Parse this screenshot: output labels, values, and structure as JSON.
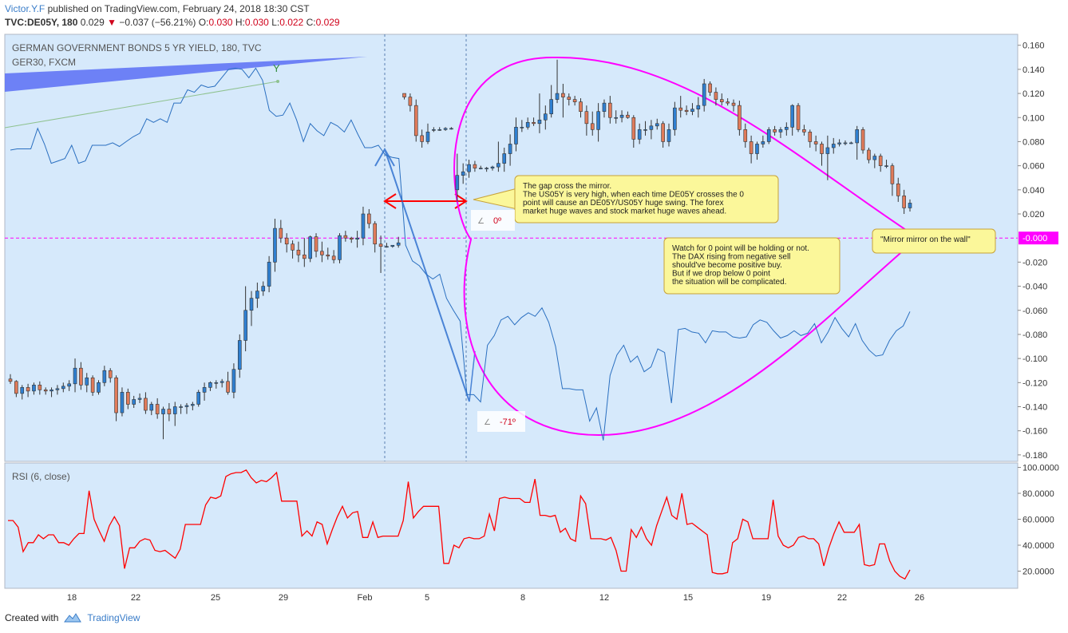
{
  "header": {
    "author": "Victor.Y.F",
    "published": "published on TradingView.com, February 24, 2018 18:30 CST",
    "symbol": "TVC:DE05Y, 180",
    "last": "0.029",
    "change": "−0.037 (−56.21%)",
    "o_label": "O:",
    "o": "0.030",
    "h_label": "H:",
    "h": "0.030",
    "l_label": "L:",
    "l": "0.022",
    "c_label": "C:",
    "c": "0.029"
  },
  "footer": {
    "created_with": "Created with",
    "brand": "TradingView"
  },
  "colors": {
    "pane_bg": "#d6e9fb",
    "up": "#2f7fd0",
    "down": "#e07b5a",
    "ger30": "#2a6fc0",
    "mirror": "#ff00ff",
    "rsi": "#ff0000",
    "arrow_blue": "#4a84d6",
    "arrow_red": "#ff0000",
    "note_bg": "#fbf79a",
    "note_border": "#c7a23a"
  },
  "chart_data": {
    "type": "candlestick",
    "title": "GERMAN GOVERNMENT BONDS 5 YR YIELD, 180, TVC",
    "overlay_label": "GER30, FXCM",
    "y_ticks": [
      "0.160",
      "0.140",
      "0.120",
      "0.100",
      "0.080",
      "0.060",
      "0.040",
      "0.020",
      "-0.020",
      "-0.040",
      "-0.060",
      "-0.080",
      "-0.100",
      "-0.120",
      "-0.140",
      "-0.160",
      "-0.180"
    ],
    "ylim": [
      -0.18,
      0.16
    ],
    "x_ticks": [
      "18",
      "22",
      "25",
      "29",
      "Feb",
      "5",
      "8",
      "12",
      "15",
      "19",
      "22",
      "26"
    ],
    "zero_line_label": "-0.000",
    "candles": [
      [
        -0.117,
        -0.113,
        -0.121,
        -0.119
      ],
      [
        -0.119,
        -0.118,
        -0.132,
        -0.129
      ],
      [
        -0.129,
        -0.122,
        -0.134,
        -0.124
      ],
      [
        -0.124,
        -0.121,
        -0.132,
        -0.127
      ],
      [
        -0.127,
        -0.12,
        -0.13,
        -0.122
      ],
      [
        -0.122,
        -0.119,
        -0.13,
        -0.126
      ],
      [
        -0.126,
        -0.124,
        -0.13,
        -0.127
      ],
      [
        -0.127,
        -0.124,
        -0.132,
        -0.126
      ],
      [
        -0.126,
        -0.122,
        -0.13,
        -0.125
      ],
      [
        -0.125,
        -0.12,
        -0.128,
        -0.123
      ],
      [
        -0.123,
        -0.118,
        -0.127,
        -0.121
      ],
      [
        -0.121,
        -0.1,
        -0.128,
        -0.108
      ],
      [
        -0.108,
        -0.103,
        -0.126,
        -0.122
      ],
      [
        -0.122,
        -0.112,
        -0.128,
        -0.116
      ],
      [
        -0.116,
        -0.114,
        -0.131,
        -0.128
      ],
      [
        -0.128,
        -0.118,
        -0.13,
        -0.12
      ],
      [
        -0.12,
        -0.106,
        -0.123,
        -0.11
      ],
      [
        -0.11,
        -0.108,
        -0.12,
        -0.116
      ],
      [
        -0.116,
        -0.114,
        -0.152,
        -0.145
      ],
      [
        -0.145,
        -0.124,
        -0.148,
        -0.128
      ],
      [
        -0.128,
        -0.125,
        -0.142,
        -0.138
      ],
      [
        -0.138,
        -0.131,
        -0.141,
        -0.134
      ],
      [
        -0.134,
        -0.129,
        -0.137,
        -0.133
      ],
      [
        -0.133,
        -0.128,
        -0.146,
        -0.143
      ],
      [
        -0.143,
        -0.136,
        -0.147,
        -0.138
      ],
      [
        -0.138,
        -0.133,
        -0.15,
        -0.146
      ],
      [
        -0.146,
        -0.14,
        -0.167,
        -0.142
      ],
      [
        -0.142,
        -0.137,
        -0.152,
        -0.146
      ],
      [
        -0.146,
        -0.136,
        -0.156,
        -0.14
      ],
      [
        -0.14,
        -0.138,
        -0.146,
        -0.14
      ],
      [
        -0.14,
        -0.137,
        -0.146,
        -0.139
      ],
      [
        -0.139,
        -0.136,
        -0.143,
        -0.138
      ],
      [
        -0.138,
        -0.126,
        -0.14,
        -0.128
      ],
      [
        -0.128,
        -0.12,
        -0.135,
        -0.124
      ],
      [
        -0.124,
        -0.119,
        -0.127,
        -0.12
      ],
      [
        -0.12,
        -0.118,
        -0.125,
        -0.12
      ],
      [
        -0.12,
        -0.117,
        -0.124,
        -0.119
      ],
      [
        -0.119,
        -0.111,
        -0.13,
        -0.128
      ],
      [
        -0.128,
        -0.104,
        -0.133,
        -0.109
      ],
      [
        -0.109,
        -0.08,
        -0.116,
        -0.085
      ],
      [
        -0.085,
        -0.04,
        -0.094,
        -0.06
      ],
      [
        -0.06,
        -0.044,
        -0.073,
        -0.05
      ],
      [
        -0.05,
        -0.037,
        -0.058,
        -0.044
      ],
      [
        -0.044,
        -0.036,
        -0.048,
        -0.04
      ],
      [
        -0.04,
        -0.015,
        -0.045,
        -0.02
      ],
      [
        -0.02,
        0.016,
        -0.028,
        0.008
      ],
      [
        0.008,
        0.015,
        -0.004,
        0.0
      ],
      [
        0.0,
        0.004,
        -0.012,
        -0.005
      ],
      [
        -0.005,
        -0.002,
        -0.017,
        -0.01
      ],
      [
        -0.01,
        -0.003,
        -0.02,
        -0.014
      ],
      [
        -0.014,
        0.0,
        -0.024,
        -0.017
      ],
      [
        -0.017,
        0.002,
        -0.02,
        0.001
      ],
      [
        0.001,
        0.004,
        -0.016,
        -0.011
      ],
      [
        -0.011,
        -0.003,
        -0.02,
        -0.014
      ],
      [
        -0.014,
        -0.008,
        -0.018,
        -0.015
      ],
      [
        -0.015,
        -0.01,
        -0.021,
        -0.018
      ],
      [
        -0.018,
        0.004,
        -0.021,
        0.002
      ],
      [
        0.002,
        0.006,
        -0.003,
        0.0
      ],
      [
        0.0,
        0.001,
        -0.004,
        -0.001
      ],
      [
        -0.001,
        0.006,
        -0.008,
        0.0
      ],
      [
        0.0,
        0.026,
        -0.006,
        0.02
      ],
      [
        0.02,
        0.024,
        0.008,
        0.012
      ],
      [
        0.012,
        0.014,
        -0.012,
        -0.005
      ],
      [
        -0.005,
        0.002,
        -0.029,
        -0.007
      ],
      [
        -0.007,
        -0.004,
        -0.008,
        -0.007
      ],
      [
        -0.007,
        -0.006,
        -0.008,
        -0.006
      ],
      [
        -0.006,
        0.001,
        -0.008,
        -0.004
      ],
      [
        0.12,
        0.12,
        0.115,
        0.117
      ],
      [
        0.117,
        0.12,
        0.105,
        0.11
      ],
      [
        0.11,
        0.115,
        0.08,
        0.085
      ],
      [
        0.085,
        0.09,
        0.075,
        0.08
      ],
      [
        0.08,
        0.095,
        0.078,
        0.088
      ],
      [
        0.09,
        0.092,
        0.088,
        0.09
      ],
      [
        0.09,
        0.092,
        0.089,
        0.09
      ],
      [
        0.09,
        0.092,
        0.089,
        0.091
      ],
      [
        0.091,
        0.092,
        0.09,
        0.091
      ],
      [
        0.04,
        0.07,
        0.03,
        0.052
      ],
      [
        0.052,
        0.062,
        0.045,
        0.055
      ],
      [
        0.055,
        0.065,
        0.05,
        0.061
      ],
      [
        0.061,
        0.064,
        0.055,
        0.058
      ],
      [
        0.058,
        0.06,
        0.057,
        0.058
      ],
      [
        0.058,
        0.059,
        0.055,
        0.058
      ],
      [
        0.058,
        0.06,
        0.056,
        0.059
      ],
      [
        0.059,
        0.08,
        0.055,
        0.062
      ],
      [
        0.062,
        0.075,
        0.055,
        0.07
      ],
      [
        0.07,
        0.086,
        0.06,
        0.078
      ],
      [
        0.078,
        0.1,
        0.072,
        0.092
      ],
      [
        0.092,
        0.098,
        0.088,
        0.092
      ],
      [
        0.092,
        0.1,
        0.09,
        0.096
      ],
      [
        0.096,
        0.1,
        0.093,
        0.095
      ],
      [
        0.095,
        0.12,
        0.087,
        0.098
      ],
      [
        0.098,
        0.11,
        0.09,
        0.103
      ],
      [
        0.103,
        0.127,
        0.1,
        0.115
      ],
      [
        0.115,
        0.148,
        0.112,
        0.12
      ],
      [
        0.12,
        0.128,
        0.1,
        0.117
      ],
      [
        0.117,
        0.12,
        0.11,
        0.115
      ],
      [
        0.115,
        0.118,
        0.11,
        0.113
      ],
      [
        0.113,
        0.116,
        0.1,
        0.105
      ],
      [
        0.105,
        0.11,
        0.085,
        0.095
      ],
      [
        0.095,
        0.105,
        0.085,
        0.09
      ],
      [
        0.09,
        0.112,
        0.08,
        0.105
      ],
      [
        0.105,
        0.115,
        0.1,
        0.112
      ],
      [
        0.112,
        0.118,
        0.095,
        0.1
      ],
      [
        0.1,
        0.106,
        0.095,
        0.1
      ],
      [
        0.1,
        0.106,
        0.096,
        0.102
      ],
      [
        0.102,
        0.105,
        0.099,
        0.1
      ],
      [
        0.1,
        0.102,
        0.075,
        0.082
      ],
      [
        0.082,
        0.095,
        0.078,
        0.09
      ],
      [
        0.09,
        0.097,
        0.085,
        0.09
      ],
      [
        0.09,
        0.098,
        0.082,
        0.093
      ],
      [
        0.093,
        0.099,
        0.09,
        0.095
      ],
      [
        0.095,
        0.097,
        0.075,
        0.08
      ],
      [
        0.08,
        0.095,
        0.076,
        0.09
      ],
      [
        0.09,
        0.113,
        0.085,
        0.108
      ],
      [
        0.108,
        0.118,
        0.1,
        0.106
      ],
      [
        0.106,
        0.11,
        0.102,
        0.105
      ],
      [
        0.105,
        0.112,
        0.102,
        0.107
      ],
      [
        0.107,
        0.117,
        0.1,
        0.11
      ],
      [
        0.11,
        0.132,
        0.105,
        0.128
      ],
      [
        0.128,
        0.13,
        0.118,
        0.121
      ],
      [
        0.121,
        0.125,
        0.11,
        0.115
      ],
      [
        0.115,
        0.12,
        0.11,
        0.113
      ],
      [
        0.113,
        0.116,
        0.11,
        0.112
      ],
      [
        0.112,
        0.115,
        0.105,
        0.11
      ],
      [
        0.11,
        0.114,
        0.085,
        0.09
      ],
      [
        0.09,
        0.095,
        0.075,
        0.08
      ],
      [
        0.08,
        0.085,
        0.062,
        0.07
      ],
      [
        0.07,
        0.08,
        0.065,
        0.078
      ],
      [
        0.078,
        0.085,
        0.075,
        0.08
      ],
      [
        0.08,
        0.092,
        0.078,
        0.09
      ],
      [
        0.09,
        0.093,
        0.085,
        0.088
      ],
      [
        0.088,
        0.092,
        0.083,
        0.09
      ],
      [
        0.09,
        0.096,
        0.085,
        0.092
      ],
      [
        0.092,
        0.111,
        0.085,
        0.11
      ],
      [
        0.11,
        0.112,
        0.088,
        0.09
      ],
      [
        0.09,
        0.094,
        0.085,
        0.088
      ],
      [
        0.088,
        0.09,
        0.075,
        0.08
      ],
      [
        0.08,
        0.085,
        0.072,
        0.078
      ],
      [
        0.078,
        0.08,
        0.06,
        0.07
      ],
      [
        0.07,
        0.085,
        0.048,
        0.075
      ],
      [
        0.075,
        0.083,
        0.07,
        0.078
      ],
      [
        0.078,
        0.082,
        0.076,
        0.079
      ],
      [
        0.079,
        0.081,
        0.077,
        0.079
      ],
      [
        0.079,
        0.08,
        0.078,
        0.079
      ],
      [
        0.079,
        0.093,
        0.065,
        0.09
      ],
      [
        0.09,
        0.092,
        0.07,
        0.073
      ],
      [
        0.073,
        0.075,
        0.062,
        0.065
      ],
      [
        0.065,
        0.07,
        0.058,
        0.068
      ],
      [
        0.068,
        0.07,
        0.055,
        0.06
      ],
      [
        0.06,
        0.065,
        0.058,
        0.06
      ],
      [
        0.06,
        0.062,
        0.035,
        0.045
      ],
      [
        0.045,
        0.05,
        0.03,
        0.035
      ],
      [
        0.035,
        0.04,
        0.02,
        0.025
      ],
      [
        0.025,
        0.032,
        0.022,
        0.029
      ]
    ],
    "ger30_line": [
      0.073,
      0.074,
      0.074,
      0.074,
      0.091,
      0.078,
      0.062,
      0.064,
      0.066,
      0.077,
      0.062,
      0.064,
      0.077,
      0.077,
      0.077,
      0.079,
      0.076,
      0.08,
      0.084,
      0.087,
      0.099,
      0.096,
      0.099,
      0.096,
      0.112,
      0.112,
      0.123,
      0.121,
      0.127,
      0.125,
      0.126,
      0.133,
      0.14,
      0.141,
      0.14,
      0.133,
      0.141,
      0.131,
      0.106,
      0.101,
      0.102,
      0.112,
      0.098,
      0.08,
      0.095,
      0.089,
      0.085,
      0.096,
      0.093,
      0.088,
      0.098,
      0.086,
      0.075,
      0.075,
      0.077,
      0.069,
      0.067,
      0.066,
      -0.006,
      -0.019,
      -0.023,
      -0.03,
      -0.034,
      -0.03,
      -0.05,
      -0.06,
      -0.069,
      -0.13,
      -0.13,
      -0.136,
      -0.089,
      -0.081,
      -0.068,
      -0.065,
      -0.072,
      -0.066,
      -0.062,
      -0.065,
      -0.058,
      -0.07,
      -0.09,
      -0.125,
      -0.125,
      -0.126,
      -0.126,
      -0.152,
      -0.141,
      -0.168,
      -0.114,
      -0.097,
      -0.089,
      -0.103,
      -0.098,
      -0.111,
      -0.107,
      -0.092,
      -0.095,
      -0.137,
      -0.076,
      -0.075,
      -0.078,
      -0.079,
      -0.087,
      -0.077,
      -0.078,
      -0.078,
      -0.082,
      -0.083,
      -0.082,
      -0.072,
      -0.068,
      -0.07,
      -0.077,
      -0.083,
      -0.081,
      -0.077,
      -0.081,
      -0.079,
      -0.071,
      -0.087,
      -0.078,
      -0.066,
      -0.075,
      -0.082,
      -0.071,
      -0.085,
      -0.093,
      -0.098,
      -0.097,
      -0.085,
      -0.077,
      -0.073,
      -0.061
    ],
    "annotations": {
      "note1": [
        "The gap cross the mirror.",
        "The US05Y is very high, when each time DE05Y crosses the 0",
        "point will cause an DE05Y/US05Y huge swing. The forex",
        "market huge waves and stock market huge waves ahead."
      ],
      "note2": [
        "Watch for 0 point will be holding or not.",
        "The DAX rising from negative sell",
        "should've become positive buy.",
        "But if we drop below 0 point",
        "the situation will be complicated."
      ],
      "note3": "\"Mirror mirror on the wall\"",
      "angle1": "0º",
      "angle2": "-71º"
    },
    "rsi": {
      "label": "RSI (6, close)",
      "y_ticks": [
        "100.0000",
        "80.0000",
        "60.0000",
        "40.0000",
        "20.0000"
      ],
      "ylim": [
        0,
        100
      ],
      "values": [
        59,
        59,
        54,
        35,
        42,
        42,
        48,
        45,
        48,
        48,
        42,
        42,
        40,
        45,
        49,
        49,
        82,
        60,
        51,
        43,
        55,
        62,
        55,
        22,
        38,
        38,
        43,
        45,
        44,
        36,
        35,
        36,
        33,
        30,
        37,
        56,
        56,
        56,
        56,
        71,
        77,
        76,
        78,
        93,
        95,
        96,
        96,
        98,
        92,
        88,
        90,
        89,
        92,
        96,
        74,
        74,
        74,
        74,
        47,
        51,
        47,
        58,
        56,
        41,
        52,
        62,
        70,
        61,
        65,
        66,
        46,
        46,
        58,
        46,
        47,
        47,
        47,
        47,
        59,
        89,
        61,
        66,
        70,
        70,
        70,
        70,
        26,
        26,
        40,
        38,
        45,
        46,
        45,
        45,
        47,
        64,
        51,
        76,
        77,
        76,
        76,
        76,
        73,
        73,
        91,
        63,
        63,
        62,
        63,
        50,
        53,
        45,
        43,
        78,
        72,
        45,
        45,
        45,
        44,
        46,
        36,
        20,
        20,
        52,
        46,
        54,
        45,
        40,
        55,
        66,
        77,
        63,
        60,
        80,
        56,
        57,
        54,
        51,
        48,
        19,
        18,
        18,
        19,
        42,
        45,
        60,
        58,
        45,
        45,
        45,
        45,
        75,
        47,
        40,
        38,
        40,
        46,
        47,
        45,
        45,
        41,
        24,
        38,
        49,
        58,
        50,
        50,
        50,
        56,
        25,
        24,
        25,
        41,
        41,
        28,
        20,
        16,
        14,
        21
      ]
    }
  }
}
